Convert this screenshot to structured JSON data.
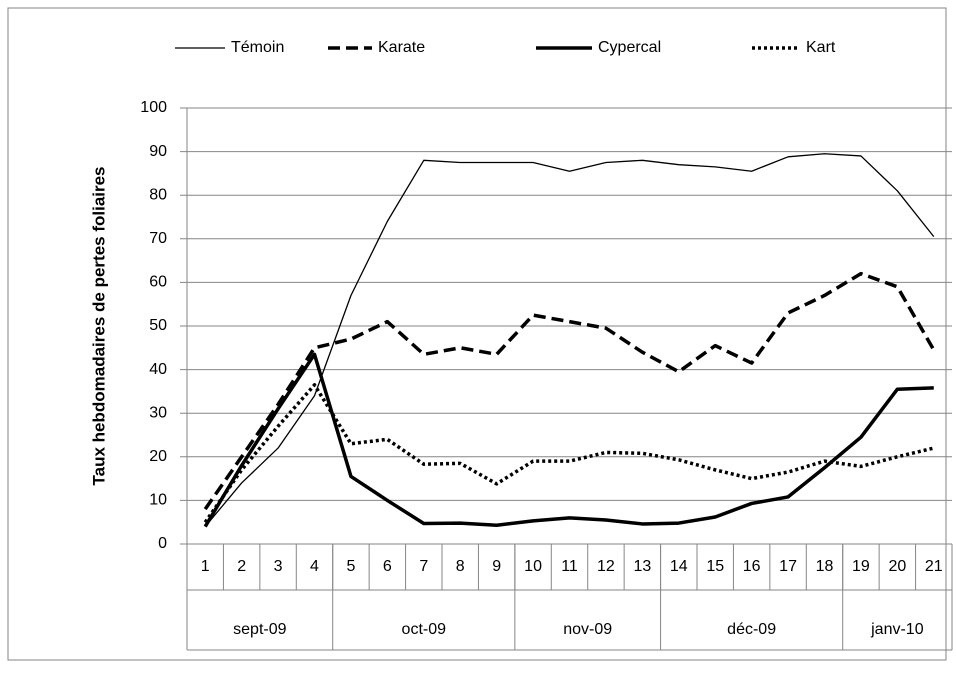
{
  "chart_data": {
    "type": "line",
    "y_label": "Taux hebdomadaires de pertes foliaires",
    "category_groups": [
      {
        "name": "sept-09",
        "categories": [
          "1",
          "2",
          "3",
          "4"
        ]
      },
      {
        "name": "oct-09",
        "categories": [
          "5",
          "6",
          "7",
          "8",
          "9"
        ]
      },
      {
        "name": "nov-09",
        "categories": [
          "10",
          "11",
          "12",
          "13"
        ]
      },
      {
        "name": "déc-09",
        "categories": [
          "14",
          "15",
          "16",
          "17",
          "18"
        ]
      },
      {
        "name": "janv-10",
        "categories": [
          "19",
          "20",
          "21"
        ]
      }
    ],
    "series": [
      {
        "name": "Témoin",
        "color": "#000000",
        "line_style": "thin",
        "values": [
          4,
          14,
          22,
          34,
          57,
          74,
          88,
          87.5,
          87.5,
          87.5,
          85.5,
          87.5,
          88,
          87,
          86.5,
          85.5,
          88.8,
          89.5,
          89,
          81,
          70.5
        ]
      },
      {
        "name": "Karate",
        "color": "#000000",
        "line_style": "dashed",
        "values": [
          8,
          20,
          32,
          45,
          47,
          51,
          43.5,
          45,
          43.5,
          52.5,
          51,
          49.5,
          44,
          39.5,
          45.5,
          41.5,
          53,
          57,
          62,
          59,
          44.5
        ]
      },
      {
        "name": "Cypercal",
        "color": "#000000",
        "line_style": "solid",
        "values": [
          4,
          18,
          31,
          43.5,
          15.5,
          10,
          4.7,
          4.8,
          4.3,
          5.3,
          6,
          5.5,
          4.6,
          4.8,
          6.2,
          9.3,
          10.8,
          17.5,
          24.5,
          35.5,
          35.8
        ]
      },
      {
        "name": "Kart",
        "color": "#000000",
        "line_style": "dotted",
        "values": [
          5,
          17,
          27,
          36.5,
          23,
          24,
          18.3,
          18.5,
          13.8,
          19,
          19,
          21,
          20.8,
          19.3,
          17,
          15,
          16.5,
          19,
          17.8,
          20,
          22
        ]
      }
    ],
    "ylim": [
      0,
      100
    ],
    "yticks": [
      0,
      10,
      20,
      30,
      40,
      50,
      60,
      70,
      80,
      90,
      100
    ],
    "grid": true,
    "legend": "top"
  }
}
